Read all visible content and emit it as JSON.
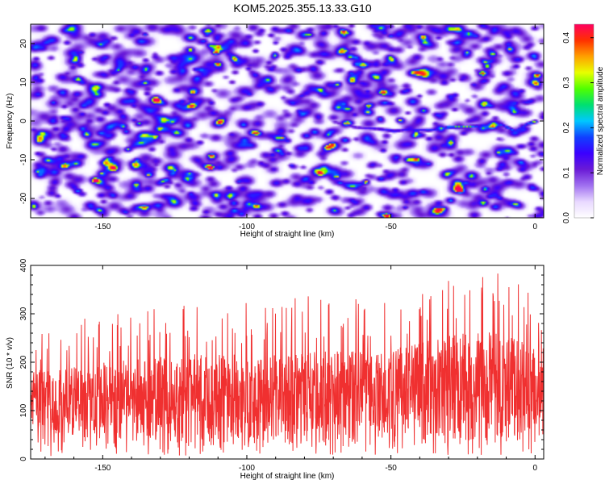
{
  "title": "KOM5.2025.355.13.33.G10",
  "chart_data": [
    {
      "type": "heatmap",
      "xlabel": "Height of straight line (km)",
      "ylabel": "Frequency (Hz)",
      "xlim": [
        -175,
        3
      ],
      "ylim": [
        -25,
        25
      ],
      "x_ticks": [
        -150,
        -100,
        -50,
        0
      ],
      "y_ticks": [
        -20,
        -10,
        0,
        10,
        20
      ],
      "colorbar": {
        "label": "Normalized spectral amplitude",
        "range": [
          0.0,
          0.43
        ],
        "ticks": [
          "0.0",
          "0.1",
          "0.2",
          "0.3",
          "0.4"
        ],
        "colors": [
          "#ffffff",
          "#e8d8ff",
          "#a070f0",
          "#6a1bd6",
          "#3a00ff",
          "#1040ff",
          "#00c8ff",
          "#00e070",
          "#50ff00",
          "#e8ff00",
          "#ffa000",
          "#ff3000",
          "#ff0060"
        ]
      },
      "signal_track": {
        "description_points": [
          {
            "x": -70,
            "y": 0.0,
            "v": 0.14
          },
          {
            "x": -62,
            "y": -1.5,
            "v": 0.17
          },
          {
            "x": -55,
            "y": -1.8,
            "v": 0.2
          },
          {
            "x": -49,
            "y": -2.4,
            "v": 0.24
          },
          {
            "x": -44,
            "y": -2.0,
            "v": 0.2
          },
          {
            "x": -37,
            "y": -2.2,
            "v": 0.24
          },
          {
            "x": -30,
            "y": -1.4,
            "v": 0.34
          },
          {
            "x": -24,
            "y": -1.3,
            "v": 0.3
          },
          {
            "x": -18,
            "y": -1.0,
            "v": 0.27
          },
          {
            "x": -12,
            "y": -0.7,
            "v": 0.28
          },
          {
            "x": -7,
            "y": -2.5,
            "v": 0.26
          },
          {
            "x": -3,
            "y": -0.6,
            "v": 0.24
          },
          {
            "x": 0,
            "y": 0.1,
            "v": 0.34
          }
        ]
      }
    },
    {
      "type": "line",
      "xlabel": "Height of straight line (km)",
      "ylabel": "SNR (10 * v/v)",
      "xlim": [
        -175,
        3
      ],
      "ylim": [
        0,
        400
      ],
      "x_ticks": [
        -150,
        -100,
        -50,
        0
      ],
      "y_ticks": [
        0,
        100,
        200,
        300,
        400
      ],
      "line_color": "#f03030",
      "series": [
        {
          "envelope": [
            {
              "x": -175,
              "mean": 120,
              "peak": 260
            },
            {
              "x": -150,
              "mean": 120,
              "peak": 300
            },
            {
              "x": -125,
              "mean": 125,
              "peak": 330
            },
            {
              "x": -100,
              "mean": 125,
              "peak": 330
            },
            {
              "x": -75,
              "mean": 125,
              "peak": 340
            },
            {
              "x": -50,
              "mean": 140,
              "peak": 330
            },
            {
              "x": -25,
              "mean": 150,
              "peak": 400
            },
            {
              "x": -15,
              "mean": 150,
              "peak": 400
            },
            {
              "x": 0,
              "mean": 150,
              "peak": 345
            },
            {
              "x": 3,
              "mean": 150,
              "peak": 250
            }
          ]
        }
      ]
    }
  ]
}
